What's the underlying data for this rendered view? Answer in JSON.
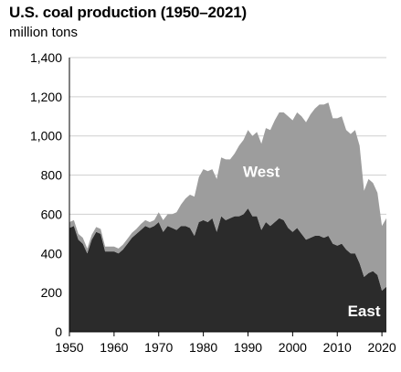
{
  "chart_data": {
    "type": "area",
    "stacked": true,
    "title": "U.S. coal production (1950–2021)",
    "unit_label": "million tons",
    "xlabel": "",
    "ylabel": "",
    "xlim": [
      1950,
      2021
    ],
    "ylim": [
      0,
      1400
    ],
    "x_ticks": [
      1950,
      1960,
      1970,
      1980,
      1990,
      2000,
      2010,
      2020
    ],
    "y_ticks": [
      0,
      200,
      400,
      600,
      800,
      1000,
      1200,
      1400
    ],
    "y_tick_labels": [
      "0",
      "200",
      "400",
      "600",
      "800",
      "1,000",
      "1,200",
      "1,400"
    ],
    "grid": "horizontal",
    "legend": "none",
    "x": [
      1950,
      1951,
      1952,
      1953,
      1954,
      1955,
      1956,
      1957,
      1958,
      1959,
      1960,
      1961,
      1962,
      1963,
      1964,
      1965,
      1966,
      1967,
      1968,
      1969,
      1970,
      1971,
      1972,
      1973,
      1974,
      1975,
      1976,
      1977,
      1978,
      1979,
      1980,
      1981,
      1982,
      1983,
      1984,
      1985,
      1986,
      1987,
      1988,
      1989,
      1990,
      1991,
      1992,
      1993,
      1994,
      1995,
      1996,
      1997,
      1998,
      1999,
      2000,
      2001,
      2002,
      2003,
      2004,
      2005,
      2006,
      2007,
      2008,
      2009,
      2010,
      2011,
      2012,
      2013,
      2014,
      2015,
      2016,
      2017,
      2018,
      2019,
      2020,
      2021
    ],
    "series": [
      {
        "name": "East",
        "color": "#2b2b2b",
        "label_color": "#ffffff",
        "values": [
          530,
          540,
          470,
          450,
          400,
          470,
          510,
          500,
          410,
          410,
          410,
          400,
          420,
          450,
          480,
          500,
          520,
          540,
          530,
          540,
          560,
          510,
          540,
          530,
          520,
          540,
          540,
          530,
          490,
          560,
          570,
          560,
          580,
          510,
          590,
          570,
          580,
          590,
          590,
          600,
          630,
          590,
          590,
          520,
          560,
          540,
          560,
          580,
          570,
          530,
          510,
          530,
          500,
          470,
          480,
          490,
          490,
          480,
          490,
          450,
          440,
          450,
          420,
          400,
          400,
          350,
          280,
          300,
          310,
          290,
          210,
          230
        ]
      },
      {
        "name": "West",
        "color": "#9d9d9d",
        "label_color": "#ffffff",
        "values": [
          30,
          30,
          30,
          30,
          25,
          25,
          25,
          25,
          25,
          25,
          25,
          25,
          25,
          25,
          25,
          25,
          30,
          30,
          30,
          30,
          50,
          60,
          60,
          70,
          90,
          110,
          140,
          170,
          200,
          230,
          260,
          260,
          250,
          270,
          300,
          310,
          300,
          320,
          360,
          380,
          400,
          410,
          430,
          440,
          480,
          490,
          520,
          540,
          550,
          570,
          570,
          590,
          600,
          600,
          630,
          650,
          670,
          680,
          680,
          640,
          650,
          650,
          610,
          610,
          630,
          600,
          440,
          480,
          450,
          420,
          330,
          350
        ]
      }
    ],
    "annotations": [
      {
        "text": "West",
        "series": "West",
        "x": 1993,
        "y": 790
      },
      {
        "text": "East",
        "series": "East",
        "x": 2016,
        "y": 80
      }
    ]
  }
}
